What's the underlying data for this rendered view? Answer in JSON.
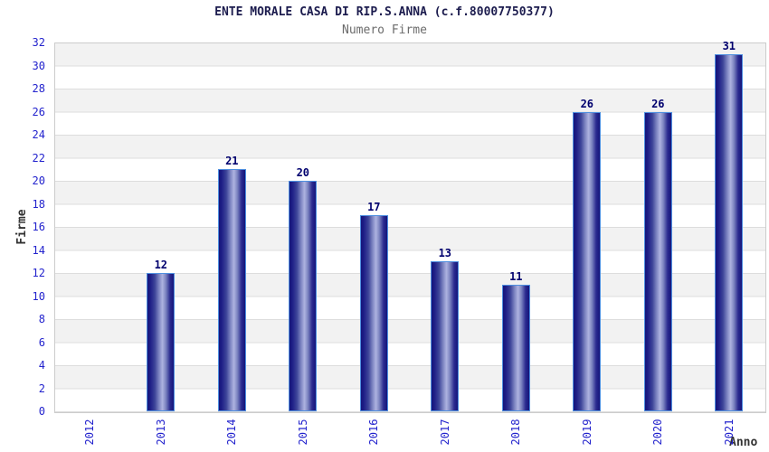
{
  "chart_data": {
    "type": "bar",
    "title": "ENTE MORALE CASA DI RIP.S.ANNA (c.f.80007750377)",
    "subtitle": "Numero Firme",
    "xlabel": "Anno",
    "ylabel": "Firme",
    "categories": [
      "2012",
      "2013",
      "2014",
      "2015",
      "2016",
      "2017",
      "2018",
      "2019",
      "2020",
      "2021"
    ],
    "values": [
      0,
      12,
      21,
      20,
      17,
      13,
      11,
      26,
      26,
      31
    ],
    "ylim": [
      0,
      32
    ],
    "ytick_step": 2,
    "yticks": [
      0,
      2,
      4,
      6,
      8,
      10,
      12,
      14,
      16,
      18,
      20,
      22,
      24,
      26,
      28,
      30,
      32
    ],
    "grid": "horizontal-bands",
    "legend": "none",
    "colors": {
      "tick_label": "#2323cd",
      "value_label": "#00006e",
      "title": "#1c1c4e",
      "subtitle": "#6b6b6b",
      "axis_title": "#333333",
      "bar_dark": "#15157a",
      "bar_highlight": "#aeb3e0",
      "bar_border": "#4e8fe0",
      "band_gray": "#f2f2f2",
      "band_white": "#ffffff",
      "gridline": "#dddddd",
      "plot_border": "#cccccc"
    }
  }
}
